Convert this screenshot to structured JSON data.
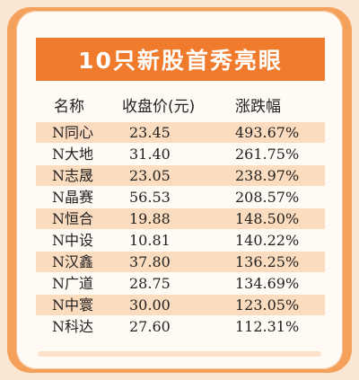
{
  "title": "10只新股首秀亮眼",
  "headers": {
    "name": "名称",
    "price": "收盘价(元)",
    "change": "涨跌幅"
  },
  "rows": [
    {
      "name": "N同心",
      "price": "23.45",
      "change": "493.67%"
    },
    {
      "name": "N大地",
      "price": "31.40",
      "change": "261.75%"
    },
    {
      "name": "N志晟",
      "price": "23.05",
      "change": "238.97%"
    },
    {
      "name": "N晶赛",
      "price": "56.53",
      "change": "208.57%"
    },
    {
      "name": "N恒合",
      "price": "19.88",
      "change": "148.50%"
    },
    {
      "name": "N中设",
      "price": "10.81",
      "change": "140.22%"
    },
    {
      "name": "N汉鑫",
      "price": "37.80",
      "change": "136.25%"
    },
    {
      "name": "N广道",
      "price": "28.75",
      "change": "134.69%"
    },
    {
      "name": "N中寰",
      "price": "30.00",
      "change": "123.05%"
    },
    {
      "name": "N科达",
      "price": "27.60",
      "change": "112.31%"
    }
  ],
  "colors": {
    "accent": "#f07b2c",
    "stripe": "#fcdcbf",
    "frame": "#f4a25b"
  }
}
